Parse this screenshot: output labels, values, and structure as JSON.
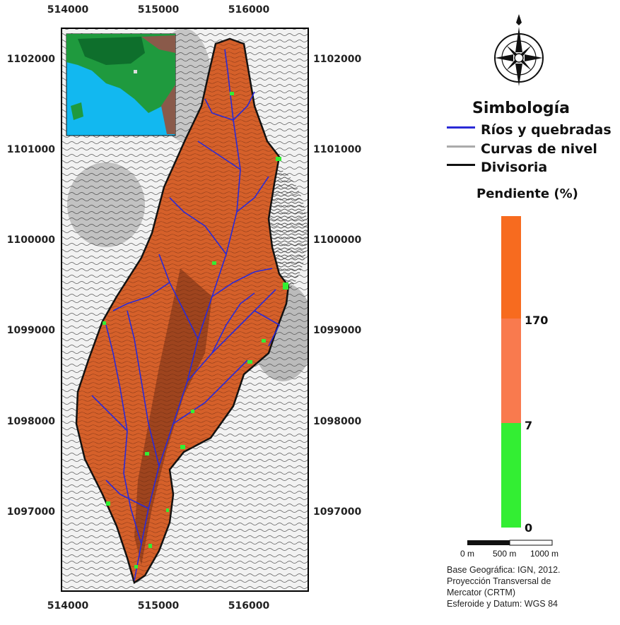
{
  "map": {
    "x_ticks": [
      "514000",
      "515000",
      "516000"
    ],
    "y_ticks": [
      "1102000",
      "1101000",
      "1100000",
      "1099000",
      "1098000",
      "1097000"
    ]
  },
  "legend": {
    "title": "Simbología",
    "items": [
      {
        "label": "Ríos y quebradas",
        "color": "#2a2ad6"
      },
      {
        "label": "Curvas de nivel",
        "color": "#aaaaaa"
      },
      {
        "label": "Divisoria",
        "color": "#111111"
      }
    ]
  },
  "slope": {
    "title": "Pendiente (%)",
    "classes": [
      {
        "label": "0",
        "color": "#33ee33"
      },
      {
        "label": "7",
        "color": "#f97a4e"
      },
      {
        "label": "170",
        "color": "#f76b1f"
      }
    ]
  },
  "scale_bar": {
    "labels": [
      "0 m",
      "500 m",
      "1000 m"
    ]
  },
  "credits": [
    "Base Geográfica: IGN, 2012.",
    "Proyección Transversal de",
    "Mercator (CRTM)",
    "Esferoide y Datum: WGS 84"
  ],
  "colors": {
    "basin": "#d5602a",
    "frame": "#000000",
    "sea": "#12b8f0",
    "land": "#1f9a3e"
  }
}
